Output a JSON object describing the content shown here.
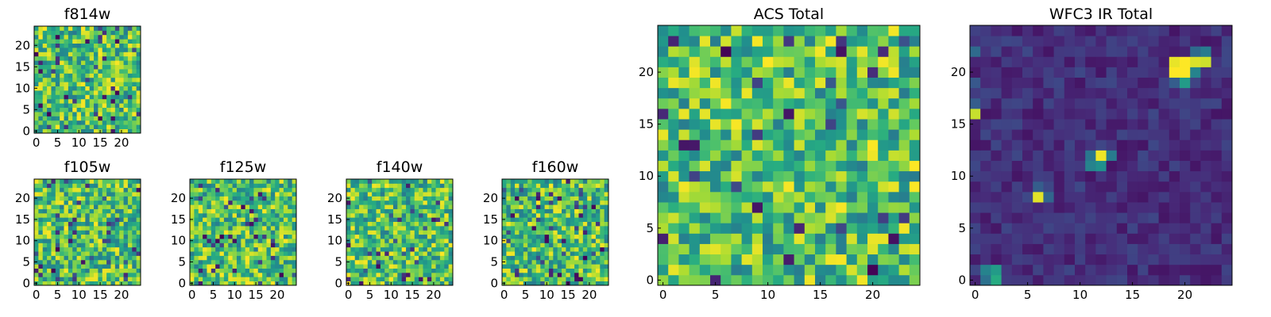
{
  "chart_data": [
    {
      "type": "heatmap",
      "title": "f814w",
      "grid_size": 25,
      "xticks": [
        0,
        5,
        10,
        15,
        20
      ],
      "yticks": [
        0,
        5,
        10,
        15,
        20
      ],
      "colormap": "viridis",
      "pattern": "noise-high",
      "seed": 11,
      "grid": false
    },
    {
      "type": "heatmap",
      "title": "f105w",
      "grid_size": 25,
      "xticks": [
        0,
        5,
        10,
        15,
        20
      ],
      "yticks": [
        0,
        5,
        10,
        15,
        20
      ],
      "colormap": "viridis",
      "pattern": "noise-high",
      "seed": 23,
      "grid": false
    },
    {
      "type": "heatmap",
      "title": "f125w",
      "grid_size": 25,
      "xticks": [
        0,
        5,
        10,
        15,
        20
      ],
      "yticks": [
        0,
        5,
        10,
        15,
        20
      ],
      "colormap": "viridis",
      "pattern": "noise-high",
      "seed": 37,
      "grid": false
    },
    {
      "type": "heatmap",
      "title": "f140w",
      "grid_size": 25,
      "xticks": [
        0,
        5,
        10,
        15,
        20
      ],
      "yticks": [
        0,
        5,
        10,
        15,
        20
      ],
      "colormap": "viridis",
      "pattern": "noise-high",
      "seed": 41,
      "grid": false
    },
    {
      "type": "heatmap",
      "title": "f160w",
      "grid_size": 25,
      "xticks": [
        0,
        5,
        10,
        15,
        20
      ],
      "yticks": [
        0,
        5,
        10,
        15,
        20
      ],
      "colormap": "viridis",
      "pattern": "noise-high",
      "seed": 59,
      "grid": false
    },
    {
      "type": "heatmap",
      "title": "ACS Total",
      "grid_size": 25,
      "xticks": [
        0,
        5,
        10,
        15,
        20
      ],
      "yticks": [
        0,
        5,
        10,
        15,
        20
      ],
      "colormap": "viridis",
      "pattern": "noise-high",
      "seed": 71,
      "grid": false
    },
    {
      "type": "heatmap",
      "title": "WFC3 IR Total",
      "grid_size": 25,
      "xticks": [
        0,
        5,
        10,
        15,
        20
      ],
      "yticks": [
        0,
        5,
        10,
        15,
        20
      ],
      "colormap": "viridis",
      "pattern": "sources",
      "seed": 83,
      "grid": false,
      "sources": [
        {
          "x": 19,
          "y": 20,
          "value": 1.0
        },
        {
          "x": 20,
          "y": 20,
          "value": 1.0
        },
        {
          "x": 19,
          "y": 21,
          "value": 0.97
        },
        {
          "x": 20,
          "y": 21,
          "value": 1.0
        },
        {
          "x": 21,
          "y": 21,
          "value": 0.95
        },
        {
          "x": 22,
          "y": 21,
          "value": 0.93
        },
        {
          "x": 21,
          "y": 20,
          "value": 0.45
        },
        {
          "x": 22,
          "y": 22,
          "value": 0.42
        },
        {
          "x": 21,
          "y": 22,
          "value": 0.35
        },
        {
          "x": 20,
          "y": 19,
          "value": 0.55
        },
        {
          "x": 19,
          "y": 19,
          "value": 0.3
        },
        {
          "x": 12,
          "y": 12,
          "value": 0.98
        },
        {
          "x": 12,
          "y": 11,
          "value": 0.5
        },
        {
          "x": 11,
          "y": 11,
          "value": 0.45
        },
        {
          "x": 11,
          "y": 12,
          "value": 0.4
        },
        {
          "x": 13,
          "y": 12,
          "value": 0.42
        },
        {
          "x": 6,
          "y": 8,
          "value": 0.96
        },
        {
          "x": 7,
          "y": 8,
          "value": 0.33
        },
        {
          "x": 6,
          "y": 9,
          "value": 0.3
        },
        {
          "x": 0,
          "y": 16,
          "value": 0.92
        },
        {
          "x": 0,
          "y": 17,
          "value": 0.3
        },
        {
          "x": 2,
          "y": 0,
          "value": 0.62
        },
        {
          "x": 2,
          "y": 1,
          "value": 0.55
        },
        {
          "x": 1,
          "y": 1,
          "value": 0.45
        },
        {
          "x": 1,
          "y": 0,
          "value": 0.38
        },
        {
          "x": 0,
          "y": 22,
          "value": 0.35
        },
        {
          "x": 0,
          "y": 19,
          "value": 0.28
        },
        {
          "x": 10,
          "y": 9,
          "value": 0.22
        },
        {
          "x": 10,
          "y": 20,
          "value": 0.22
        }
      ]
    }
  ]
}
